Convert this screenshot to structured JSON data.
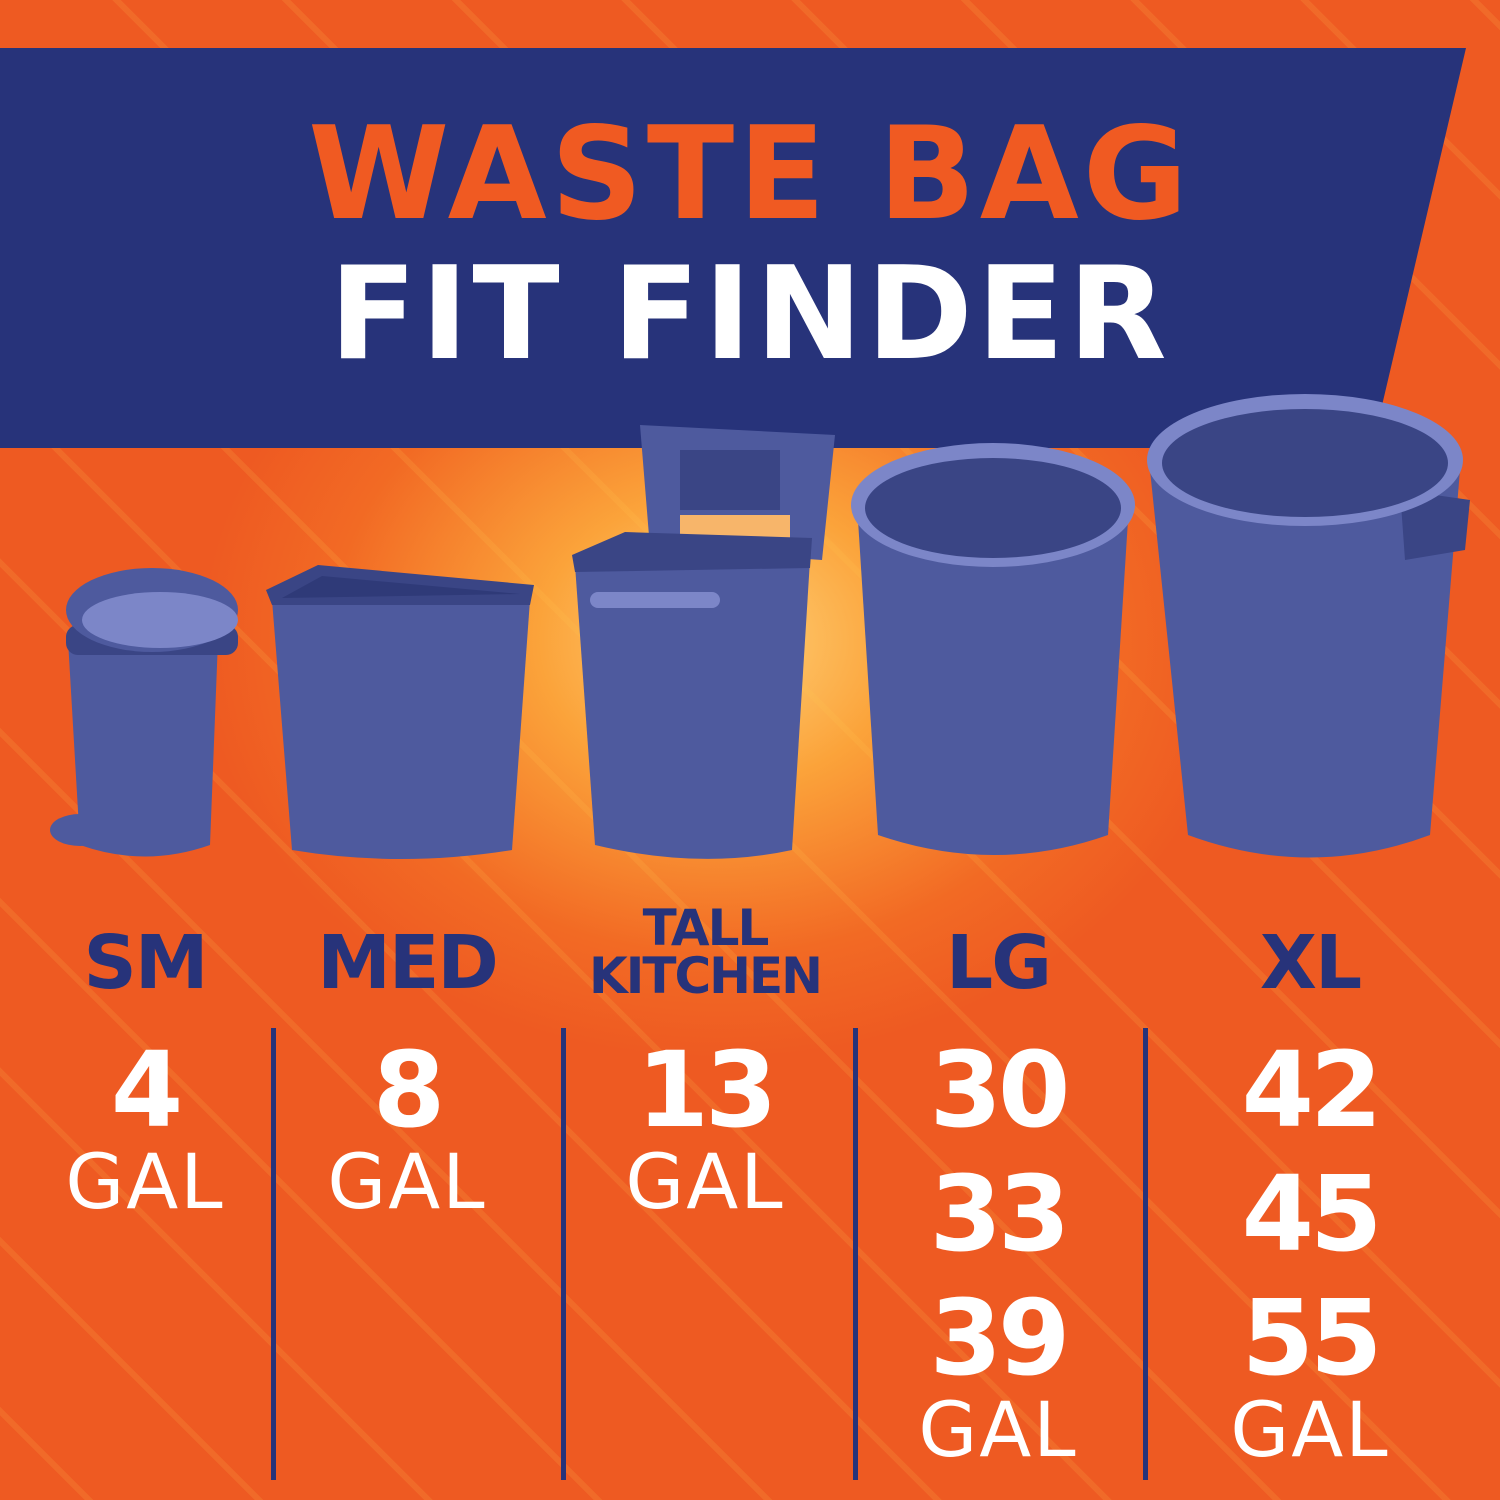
{
  "title": {
    "line1": "WASTE BAG",
    "line2": "FIT FINDER"
  },
  "colors": {
    "navy": "#27337a",
    "orange": "#f05a22",
    "bin": "#4e5a9e"
  },
  "sizes": [
    {
      "label": "SM",
      "icon": "step-trash-can-icon",
      "capacities": [
        "4"
      ],
      "unit": "GAL"
    },
    {
      "label": "MED",
      "icon": "wastebasket-icon",
      "capacities": [
        "8"
      ],
      "unit": "GAL"
    },
    {
      "label_line1": "TALL",
      "label_line2": "KITCHEN",
      "icon": "lidded-kitchen-bin-icon",
      "capacities": [
        "13"
      ],
      "unit": "GAL"
    },
    {
      "label": "LG",
      "icon": "round-trash-can-icon",
      "capacities": [
        "30",
        "33",
        "39"
      ],
      "unit": "GAL"
    },
    {
      "label": "XL",
      "icon": "large-trash-can-icon",
      "capacities": [
        "42",
        "45",
        "55"
      ],
      "unit": "GAL"
    }
  ]
}
